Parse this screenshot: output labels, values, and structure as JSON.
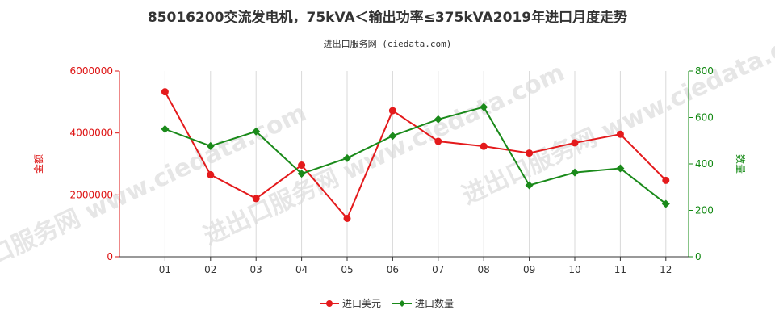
{
  "chart_data": {
    "type": "line",
    "title": "85016200交流发电机，75kVA＜输出功率≤375kVA2019年进口月度走势",
    "subtitle": "进出口服务网 (ciedata.com)",
    "watermark": "进出口服务网 www.ciedata.com",
    "categories": [
      "01",
      "02",
      "03",
      "04",
      "05",
      "06",
      "07",
      "08",
      "09",
      "10",
      "11",
      "12"
    ],
    "y_left": {
      "label": "金额",
      "ylim": [
        0,
        6000000
      ],
      "ticks": [
        "0",
        "2000000",
        "4000000",
        "6000000"
      ],
      "color": "#dd1111"
    },
    "y_right": {
      "label": "数量",
      "ylim": [
        0,
        800
      ],
      "ticks": [
        "0",
        "200",
        "400",
        "600",
        "800"
      ],
      "color": "#118811"
    },
    "grid": "vertical",
    "legend_position": "bottom",
    "series": [
      {
        "name": "进口美元",
        "axis": "left",
        "color": "#e41a1c",
        "marker": "circle",
        "values": [
          5330000,
          2650000,
          1880000,
          2960000,
          1240000,
          4720000,
          3730000,
          3570000,
          3350000,
          3680000,
          3960000,
          2470000
        ]
      },
      {
        "name": "进口数量",
        "axis": "right",
        "color": "#1a8a1a",
        "marker": "diamond",
        "values": [
          550,
          477,
          540,
          358,
          425,
          521,
          592,
          645,
          308,
          363,
          381,
          228
        ]
      }
    ]
  }
}
